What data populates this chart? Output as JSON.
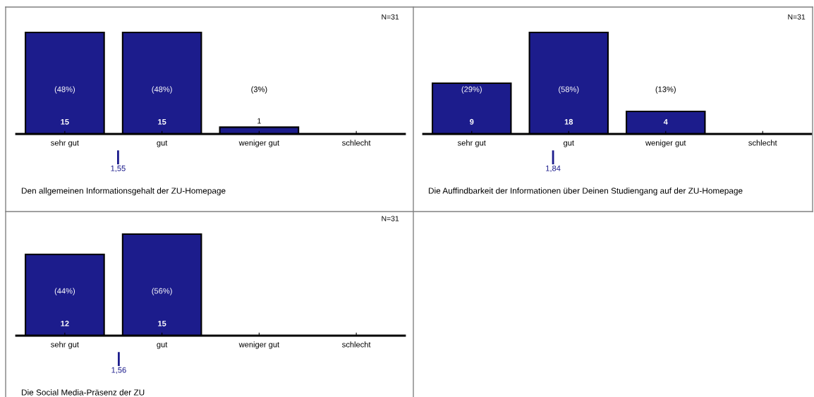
{
  "chart_data": [
    {
      "type": "bar",
      "categories": [
        "sehr gut",
        "gut",
        "weniger gut",
        "schlecht"
      ],
      "values": [
        15,
        15,
        1,
        0
      ],
      "color": "#1c1c8c",
      "value_labels": [
        "15",
        "15",
        "1",
        null
      ],
      "xlabel": "Den allgemeinen Informationsgehalt der ZU-Homepage",
      "annotations": [
        "N=31",
        "(48%)",
        "(48%)",
        "(3%)",
        "1,55"
      ]
    },
    {
      "type": "bar",
      "categories": [
        "sehr gut",
        "gut",
        "weniger gut",
        "schlecht"
      ],
      "values": [
        9,
        18,
        4,
        0
      ],
      "color": "#1c1c8c",
      "value_labels": [
        "9",
        "18",
        "4",
        null
      ],
      "xlabel": "Die Auffindbarkeit der Informationen über Deinen Studiengang auf der ZU-Homepage",
      "annotations": [
        "N=31",
        "(29%)",
        "(58%)",
        "(13%)",
        "1,84"
      ]
    },
    {
      "type": "bar",
      "categories": [
        "sehr gut",
        "gut",
        "weniger gut",
        "schlecht"
      ],
      "values": [
        12,
        15,
        0,
        0
      ],
      "color": "#1c1c8c",
      "value_labels": [
        "12",
        "15",
        null,
        null
      ],
      "xlabel": "Die Social Media-Präsenz der ZU",
      "annotations": [
        "N=31",
        "(44%)",
        "(56%)",
        "1,56"
      ]
    }
  ]
}
